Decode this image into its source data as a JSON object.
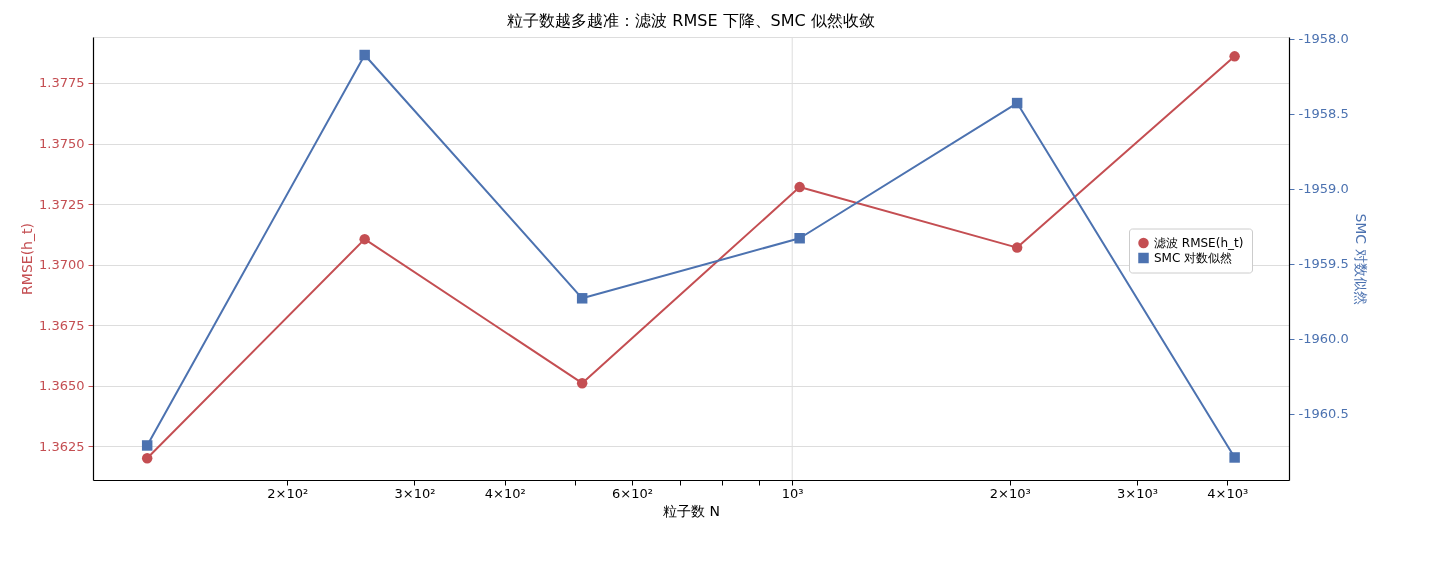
{
  "chart_data": {
    "type": "line",
    "title": "粒子数越多越准：滤波 RMSE 下降、SMC 似然收敛",
    "xlabel": "粒子数 N",
    "ylabel": "RMSE(h_t)",
    "y2label": "SMC 对数似然",
    "log": "x",
    "grid": true,
    "legend": "right",
    "line_style": "solid",
    "x": [
      128,
      256,
      512,
      1024,
      2048,
      4096
    ],
    "xlim": [
      107.7,
      4871
    ],
    "xticks": [
      {
        "value": 200,
        "label": "2×10²"
      },
      {
        "value": 300,
        "label": "3×10²"
      },
      {
        "value": 400,
        "label": "4×10²"
      },
      {
        "value": 500,
        "label": null
      },
      {
        "value": 600,
        "label": "6×10²"
      },
      {
        "value": 700,
        "label": null
      },
      {
        "value": 800,
        "label": null
      },
      {
        "value": 900,
        "label": null
      },
      {
        "value": 1000,
        "label": "10³"
      },
      {
        "value": 2000,
        "label": "2×10³"
      },
      {
        "value": 3000,
        "label": "3×10³"
      },
      {
        "value": 4000,
        "label": "4×10³"
      }
    ],
    "ylim": [
      1.3611,
      1.3794
    ],
    "yticks": [
      1.3625,
      {
        "value": 1.365,
        "label": "1.3650"
      },
      1.3675,
      {
        "value": 1.37,
        "label": "1.3700"
      },
      1.3725,
      {
        "value": 1.375,
        "label": "1.3750"
      },
      1.3775
    ],
    "y2lim": [
      -1960.94,
      -1957.99
    ],
    "y2ticks": [
      {
        "value": -1960.5,
        "label": "-1960.5"
      },
      {
        "value": -1960,
        "label": "-1960.0"
      },
      {
        "value": -1959.5,
        "label": "-1959.5"
      },
      {
        "value": -1959,
        "label": "-1959.0"
      },
      {
        "value": -1958.5,
        "label": "-1958.5"
      },
      {
        "value": -1958,
        "label": "-1958.0"
      }
    ],
    "series": [
      {
        "name": "滤波 RMSE(h_t)",
        "color": "#c44e52",
        "marker": "circle",
        "values": [
          1.362,
          1.37105,
          1.3651,
          1.3732,
          1.3707,
          1.3786
        ]
      },
      {
        "name": "SMC 对数似然",
        "color": "#4c72b0",
        "marker": "square",
        "axis": "y2",
        "values": [
          -1960.71,
          -1958.11,
          -1959.73,
          -1959.33,
          -1958.43,
          -1960.79
        ]
      }
    ]
  }
}
